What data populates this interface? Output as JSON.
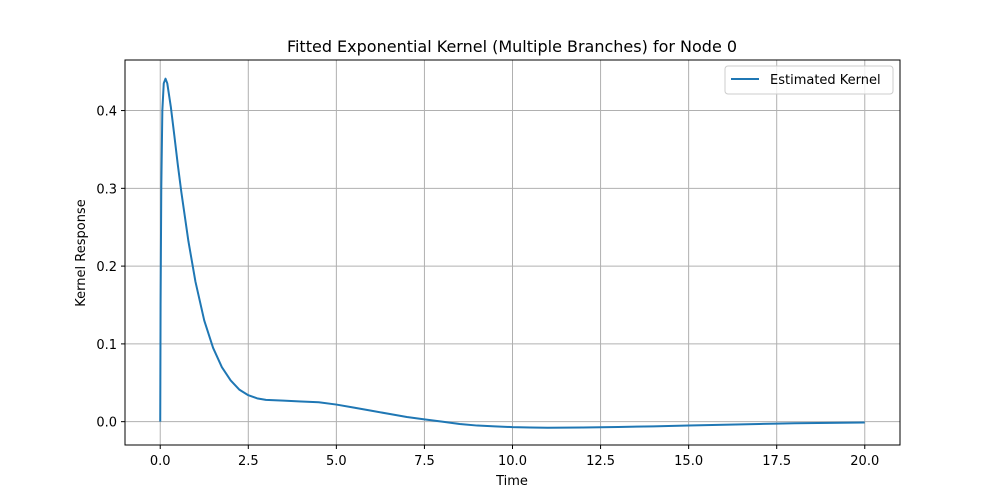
{
  "chart_data": {
    "type": "line",
    "title": "Fitted Exponential Kernel (Multiple Branches) for Node 0",
    "xlabel": "Time",
    "ylabel": "Kernel Response",
    "xlim": [
      -1.0,
      21.0
    ],
    "ylim": [
      -0.03,
      0.465
    ],
    "xticks": [
      0.0,
      2.5,
      5.0,
      7.5,
      10.0,
      12.5,
      15.0,
      17.5,
      20.0
    ],
    "xtick_labels": [
      "0.0",
      "2.5",
      "5.0",
      "7.5",
      "10.0",
      "12.5",
      "15.0",
      "17.5",
      "20.0"
    ],
    "yticks": [
      0.0,
      0.1,
      0.2,
      0.3,
      0.4
    ],
    "ytick_labels": [
      "0.0",
      "0.1",
      "0.2",
      "0.3",
      "0.4"
    ],
    "grid": true,
    "legend_position": "upper right",
    "series": [
      {
        "name": "Estimated Kernel",
        "color": "#1f77b4",
        "x": [
          0.0,
          0.01,
          0.03,
          0.06,
          0.1,
          0.15,
          0.2,
          0.3,
          0.4,
          0.5,
          0.6,
          0.8,
          1.0,
          1.25,
          1.5,
          1.75,
          2.0,
          2.25,
          2.5,
          2.75,
          3.0,
          3.5,
          4.0,
          4.5,
          5.0,
          5.5,
          6.0,
          6.5,
          7.0,
          7.5,
          8.0,
          8.5,
          9.0,
          9.5,
          10.0,
          10.5,
          11.0,
          11.5,
          12.0,
          12.5,
          13.0,
          14.0,
          15.0,
          16.0,
          17.0,
          17.5,
          18.0,
          19.0,
          20.0
        ],
        "y": [
          0.0,
          0.15,
          0.3,
          0.4,
          0.435,
          0.441,
          0.435,
          0.405,
          0.368,
          0.33,
          0.295,
          0.232,
          0.18,
          0.13,
          0.095,
          0.07,
          0.053,
          0.041,
          0.034,
          0.03,
          0.028,
          0.027,
          0.026,
          0.025,
          0.022,
          0.018,
          0.014,
          0.01,
          0.006,
          0.003,
          0.0,
          -0.003,
          -0.005,
          -0.006,
          -0.007,
          -0.0075,
          -0.0078,
          -0.0077,
          -0.0075,
          -0.0072,
          -0.0068,
          -0.006,
          -0.005,
          -0.004,
          -0.003,
          -0.0025,
          -0.002,
          -0.0015,
          -0.001
        ]
      }
    ]
  }
}
